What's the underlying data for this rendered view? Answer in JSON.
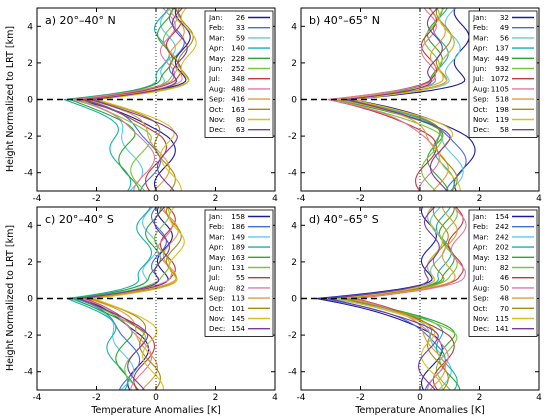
{
  "chart_data": {
    "type": "line",
    "xlabel": "Temperature Anomalies [K]",
    "ylabel": "Height Normalized to LRT [km]",
    "xlim": [
      -4,
      4
    ],
    "ylim": [
      -5,
      5
    ],
    "xticks": [
      "-4",
      "-2",
      "0",
      "2",
      "4"
    ],
    "yticks": [
      "-4",
      "-2",
      "0",
      "2",
      "4"
    ],
    "grid": false,
    "legend_position": "top-right",
    "colors": {
      "Jan": "#1a1a9e",
      "Feb": "#3f6fe0",
      "Mar": "#5fc8e8",
      "Apr": "#17b0b0",
      "May": "#2aaa2a",
      "Jun": "#78c83a",
      "Jul": "#c03838",
      "Aug": "#e07aa0",
      "Sep": "#e89a3c",
      "Oct": "#a88c10",
      "Nov": "#d8c020",
      "Dec": "#7a3aa0"
    },
    "panels": [
      {
        "title": "a) 20°–40° N",
        "counts": {
          "Jan": "26",
          "Feb": "33",
          "Mar": "59",
          "Apr": "140",
          "May": "228",
          "Jun": "252",
          "Jul": "348",
          "Aug": "488",
          "Sep": "416",
          "Oct": "163",
          "Nov": "80",
          "Dec": "63"
        },
        "series": [
          {
            "month": "Jan",
            "above": 0.9,
            "min": -2.7,
            "below": 0.3
          },
          {
            "month": "Feb",
            "above": 0.7,
            "min": -2.4,
            "below": -0.2
          },
          {
            "month": "Mar",
            "above": 0.4,
            "min": -2.6,
            "below": -0.8
          },
          {
            "month": "Apr",
            "above": 0.2,
            "min": -3.1,
            "below": -1.2
          },
          {
            "month": "May",
            "above": 0.3,
            "min": -2.9,
            "below": -0.9
          },
          {
            "month": "Jun",
            "above": 0.5,
            "min": -2.6,
            "below": -0.5
          },
          {
            "month": "Jul",
            "above": 0.6,
            "min": -2.5,
            "below": 0.0
          },
          {
            "month": "Aug",
            "above": 0.4,
            "min": -2.8,
            "below": -0.4
          },
          {
            "month": "Sep",
            "above": 0.7,
            "min": -2.3,
            "below": 0.1
          },
          {
            "month": "Oct",
            "above": 1.0,
            "min": -2.1,
            "below": 0.3
          },
          {
            "month": "Nov",
            "above": 1.1,
            "min": -2.0,
            "below": 0.5
          },
          {
            "month": "Dec",
            "above": 0.8,
            "min": -2.2,
            "below": 0.4
          }
        ]
      },
      {
        "title": "b) 40°–65° N",
        "counts": {
          "Jan": "32",
          "Feb": "49",
          "Mar": "56",
          "Apr": "137",
          "May": "449",
          "Jun": "932",
          "Jul": "1072",
          "Aug": "1105",
          "Sep": "518",
          "Oct": "198",
          "Nov": "119",
          "Dec": "58"
        },
        "series": [
          {
            "month": "Jan",
            "above": 1.4,
            "min": -2.3,
            "below": 1.5
          },
          {
            "month": "Feb",
            "above": 0.9,
            "min": -2.4,
            "below": 1.2
          },
          {
            "month": "Mar",
            "above": 1.1,
            "min": -2.6,
            "below": 1.1
          },
          {
            "month": "Apr",
            "above": 0.7,
            "min": -2.7,
            "below": 0.8
          },
          {
            "month": "May",
            "above": 0.5,
            "min": -2.9,
            "below": 0.6
          },
          {
            "month": "Jun",
            "above": 0.4,
            "min": -3.0,
            "below": 0.4
          },
          {
            "month": "Jul",
            "above": 0.3,
            "min": -3.1,
            "below": 0.2
          },
          {
            "month": "Aug",
            "above": 0.3,
            "min": -3.1,
            "below": 0.3
          },
          {
            "month": "Sep",
            "above": 0.6,
            "min": -2.8,
            "below": 0.6
          },
          {
            "month": "Oct",
            "above": 0.8,
            "min": -2.5,
            "below": 0.9
          },
          {
            "month": "Nov",
            "above": 0.9,
            "min": -2.3,
            "below": 1.0
          },
          {
            "month": "Dec",
            "above": 0.5,
            "min": -2.5,
            "below": 0.7
          }
        ]
      },
      {
        "title": "c) 20°–40° S",
        "counts": {
          "Jan": "158",
          "Feb": "186",
          "Mar": "149",
          "Apr": "189",
          "May": "163",
          "Jun": "131",
          "Jul": "55",
          "Aug": "82",
          "Sep": "113",
          "Oct": "101",
          "Nov": "145",
          "Dec": "154"
        },
        "series": [
          {
            "month": "Jan",
            "above": 0.3,
            "min": -2.5,
            "below": -0.6
          },
          {
            "month": "Feb",
            "above": 0.1,
            "min": -2.7,
            "below": -0.9
          },
          {
            "month": "Mar",
            "above": -0.2,
            "min": -2.9,
            "below": -1.1
          },
          {
            "month": "Apr",
            "above": -0.4,
            "min": -3.0,
            "below": -1.3
          },
          {
            "month": "May",
            "above": -0.1,
            "min": -2.8,
            "below": -1.0
          },
          {
            "month": "Jun",
            "above": 0.2,
            "min": -2.6,
            "below": -0.7
          },
          {
            "month": "Jul",
            "above": 0.4,
            "min": -2.4,
            "below": -0.4
          },
          {
            "month": "Aug",
            "above": 0.3,
            "min": -2.5,
            "below": -0.5
          },
          {
            "month": "Sep",
            "above": 0.5,
            "min": -2.3,
            "below": -0.3
          },
          {
            "month": "Oct",
            "above": 0.6,
            "min": -2.2,
            "below": -0.2
          },
          {
            "month": "Nov",
            "above": 0.7,
            "min": -2.1,
            "below": -0.1
          },
          {
            "month": "Dec",
            "above": 0.2,
            "min": -2.6,
            "below": -0.6
          }
        ]
      },
      {
        "title": "d) 40°–65° S",
        "counts": {
          "Jan": "154",
          "Feb": "242",
          "Mar": "242",
          "Apr": "202",
          "May": "132",
          "Jun": "82",
          "Jul": "46",
          "Aug": "50",
          "Sep": "48",
          "Oct": "70",
          "Nov": "115",
          "Dec": "141"
        },
        "series": [
          {
            "month": "Jan",
            "above": 0.3,
            "min": -3.5,
            "below": 0.4
          },
          {
            "month": "Feb",
            "above": 0.5,
            "min": -3.3,
            "below": 0.5
          },
          {
            "month": "Mar",
            "above": 0.6,
            "min": -3.0,
            "below": 0.7
          },
          {
            "month": "Apr",
            "above": 0.8,
            "min": -2.8,
            "below": 0.9
          },
          {
            "month": "May",
            "above": 0.9,
            "min": -2.6,
            "below": 1.0
          },
          {
            "month": "Jun",
            "above": 1.0,
            "min": -2.4,
            "below": 0.9
          },
          {
            "month": "Jul",
            "above": 1.2,
            "min": -2.2,
            "below": 0.8
          },
          {
            "month": "Aug",
            "above": 1.3,
            "min": -2.3,
            "below": 0.6
          },
          {
            "month": "Sep",
            "above": 1.0,
            "min": -2.5,
            "below": 0.5
          },
          {
            "month": "Oct",
            "above": 0.7,
            "min": -2.6,
            "below": 0.6
          },
          {
            "month": "Nov",
            "above": 0.5,
            "min": -2.8,
            "below": 0.4
          },
          {
            "month": "Dec",
            "above": 0.4,
            "min": -3.1,
            "below": 0.3
          }
        ]
      }
    ]
  }
}
